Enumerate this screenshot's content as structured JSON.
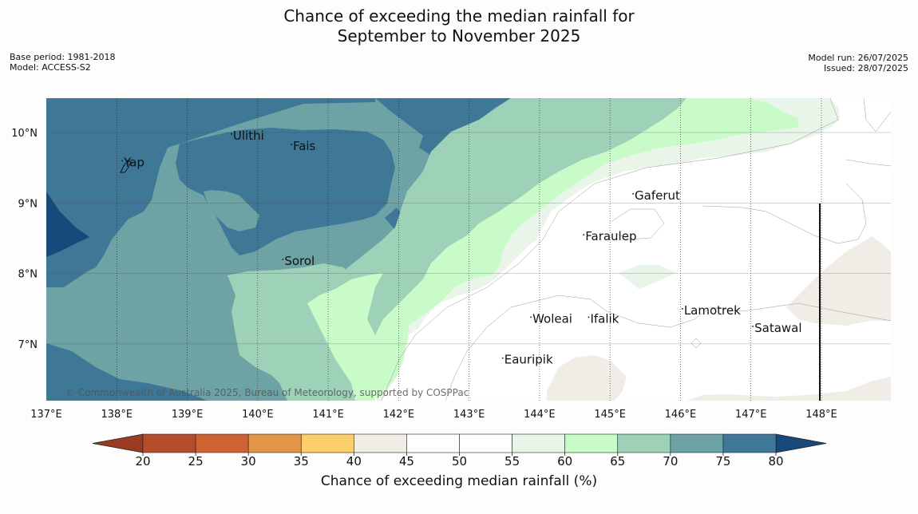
{
  "title_line1": "Chance of exceeding the median rainfall for",
  "title_line2": "September to November 2025",
  "meta_left": {
    "base_period": "Base period: 1981-2018",
    "model": "Model: ACCESS-S2"
  },
  "meta_right": {
    "model_run": "Model run: 26/07/2025",
    "issued": "Issued: 28/07/2025"
  },
  "copyright": "© Commonwealth of Australia 2025, Bureau of Meteorology, supported by COSPPac",
  "lon_ticks": [
    "137°E",
    "138°E",
    "139°E",
    "140°E",
    "141°E",
    "142°E",
    "143°E",
    "144°E",
    "145°E",
    "146°E",
    "147°E",
    "148°E"
  ],
  "lat_ticks": [
    "10°N",
    "9°N",
    "8°N",
    "7°N"
  ],
  "places": [
    {
      "name": "Yap",
      "lon": 138.1,
      "lat": 9.52
    },
    {
      "name": "Ulithi",
      "lon": 139.65,
      "lat": 9.9
    },
    {
      "name": "Fais",
      "lon": 140.5,
      "lat": 9.75
    },
    {
      "name": "Sorol",
      "lon": 140.38,
      "lat": 8.12
    },
    {
      "name": "Gaferut",
      "lon": 145.35,
      "lat": 9.05
    },
    {
      "name": "Faraulep",
      "lon": 144.65,
      "lat": 8.47
    },
    {
      "name": "Woleai",
      "lon": 143.9,
      "lat": 7.3
    },
    {
      "name": "Ifalik",
      "lon": 144.72,
      "lat": 7.3
    },
    {
      "name": "Lamotrek",
      "lon": 146.05,
      "lat": 7.42
    },
    {
      "name": "Satawal",
      "lon": 147.05,
      "lat": 7.17
    },
    {
      "name": "Eauripik",
      "lon": 143.5,
      "lat": 6.72
    }
  ],
  "colorbar": {
    "label": "Chance of exceeding median rainfall (%)",
    "ticks": [
      20,
      25,
      30,
      35,
      40,
      45,
      50,
      55,
      60,
      65,
      70,
      75,
      80
    ],
    "under_color": "#9a3b22",
    "over_color": "#17497a",
    "colors": [
      "#b54c2a",
      "#cf6232",
      "#e29448",
      "#fdcf6a",
      "#f0ede7",
      "#ffffff",
      "#ffffff",
      "#eaf5ea",
      "#c9fbc9",
      "#9dd1b8",
      "#6da3a5",
      "#3f7797"
    ]
  },
  "map_extent": {
    "lon": [
      137.0,
      149.0
    ],
    "lat": [
      6.2,
      10.5
    ]
  }
}
